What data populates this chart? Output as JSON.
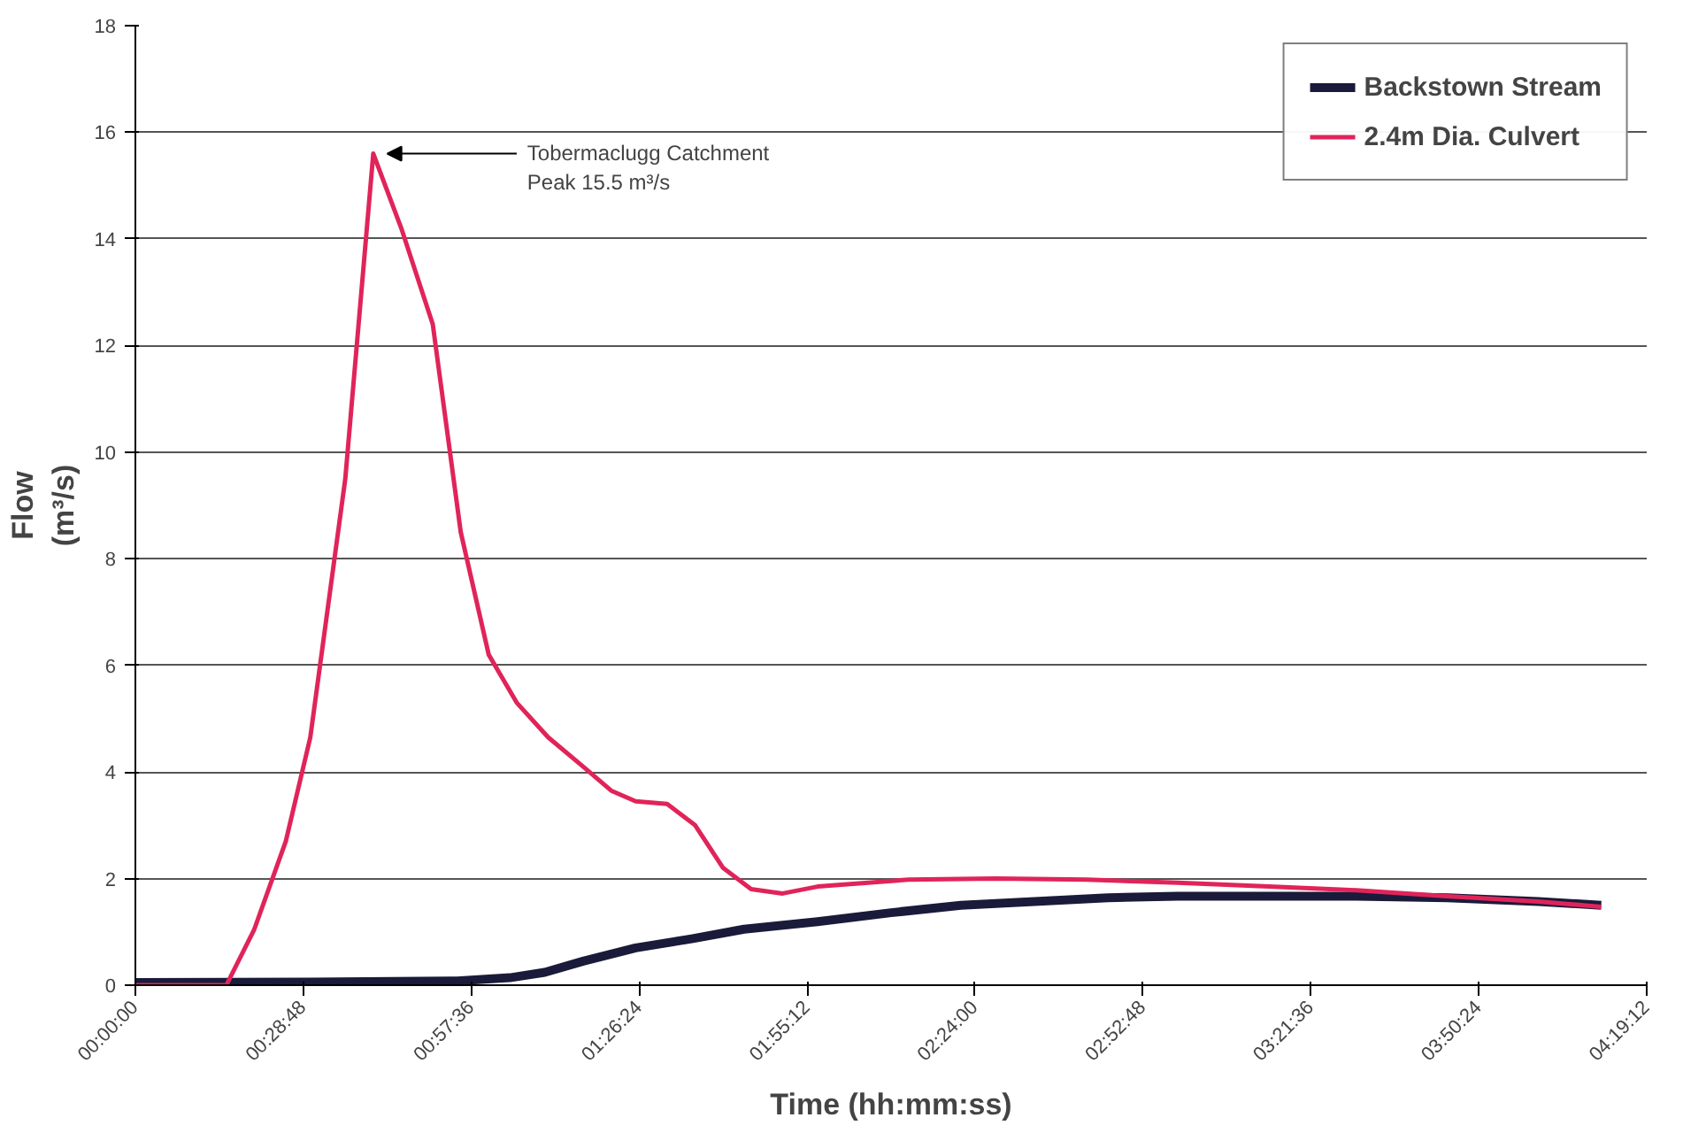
{
  "chart_data": {
    "type": "line",
    "xlabel": "Time (hh:mm:ss)",
    "ylabel": "Flow\n(m³/s)",
    "xlim": [
      0,
      4.32
    ],
    "ylim": [
      0,
      18
    ],
    "xticks": [
      {
        "value": 0,
        "label": "00:00:00"
      },
      {
        "value": 0.48,
        "label": "00:28:48"
      },
      {
        "value": 0.96,
        "label": "00:57:36"
      },
      {
        "value": 1.44,
        "label": "01:26:24"
      },
      {
        "value": 1.92,
        "label": "01:55:12"
      },
      {
        "value": 2.4,
        "label": "02:24:00"
      },
      {
        "value": 2.88,
        "label": "02:52:48"
      },
      {
        "value": 3.36,
        "label": "03:21:36"
      },
      {
        "value": 3.84,
        "label": "03:50:24"
      },
      {
        "value": 4.32,
        "label": "04:19:12"
      }
    ],
    "yticks": [
      0,
      2,
      4,
      6,
      8,
      10,
      12,
      14,
      16,
      18
    ],
    "grid": "y",
    "legend": "top right",
    "marker": "none",
    "line_style": "solid",
    "annotations": [
      {
        "text": "Tobermaclugg Catchment\nPeak 15.5 m³/s",
        "x": 0.7,
        "y": 15.6
      }
    ],
    "series": [
      {
        "name": "Backstown Stream",
        "color": "#1a1a3a",
        "x": [
          0,
          0.5,
          0.92,
          1.07,
          1.17,
          1.28,
          1.43,
          1.59,
          1.74,
          1.95,
          2.16,
          2.36,
          2.57,
          2.78,
          2.98,
          3.24,
          3.49,
          3.75,
          4.01,
          4.19
        ],
        "values": [
          0.05,
          0.06,
          0.08,
          0.14,
          0.24,
          0.45,
          0.7,
          0.87,
          1.05,
          1.19,
          1.36,
          1.5,
          1.57,
          1.64,
          1.67,
          1.67,
          1.67,
          1.64,
          1.57,
          1.5
        ]
      },
      {
        "name": "2.4m Dia. Culvert",
        "color": "#e0245a",
        "x": [
          0,
          0.26,
          0.34,
          0.43,
          0.5,
          0.6,
          0.68,
          0.76,
          0.85,
          0.93,
          1.01,
          1.09,
          1.18,
          1.28,
          1.36,
          1.43,
          1.52,
          1.6,
          1.68,
          1.76,
          1.85,
          1.95,
          2.21,
          2.46,
          2.72,
          2.98,
          3.24,
          3.49,
          3.75,
          4.01,
          4.19
        ],
        "values": [
          0,
          0,
          1.05,
          2.7,
          4.65,
          9.5,
          15.6,
          14.2,
          12.4,
          8.5,
          6.2,
          5.3,
          4.65,
          4.1,
          3.65,
          3.45,
          3.4,
          3.0,
          2.2,
          1.8,
          1.72,
          1.85,
          1.98,
          2.0,
          1.98,
          1.92,
          1.85,
          1.78,
          1.67,
          1.57,
          1.47
        ]
      }
    ]
  }
}
